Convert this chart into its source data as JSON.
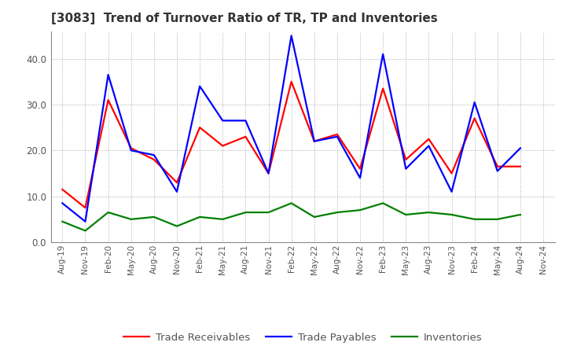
{
  "title": "[3083]  Trend of Turnover Ratio of TR, TP and Inventories",
  "x_labels": [
    "Aug-19",
    "Nov-19",
    "Feb-20",
    "May-20",
    "Aug-20",
    "Nov-20",
    "Feb-21",
    "May-21",
    "Aug-21",
    "Nov-21",
    "Feb-22",
    "May-22",
    "Aug-22",
    "Nov-22",
    "Feb-23",
    "May-23",
    "Aug-23",
    "Nov-23",
    "Feb-24",
    "May-24",
    "Aug-24",
    "Nov-24"
  ],
  "trade_receivables": [
    11.5,
    7.5,
    31.0,
    20.5,
    18.0,
    13.0,
    25.0,
    21.0,
    23.0,
    15.0,
    35.0,
    22.0,
    23.5,
    16.0,
    33.5,
    18.0,
    22.5,
    15.0,
    27.0,
    16.5,
    16.5,
    null
  ],
  "trade_payables": [
    8.5,
    4.5,
    36.5,
    20.0,
    19.0,
    11.0,
    34.0,
    26.5,
    26.5,
    15.0,
    45.0,
    22.0,
    23.0,
    14.0,
    41.0,
    16.0,
    21.0,
    11.0,
    30.5,
    15.5,
    20.5,
    null
  ],
  "inventories": [
    4.5,
    2.5,
    6.5,
    5.0,
    5.5,
    3.5,
    5.5,
    5.0,
    6.5,
    6.5,
    8.5,
    5.5,
    6.5,
    7.0,
    8.5,
    6.0,
    6.5,
    6.0,
    5.0,
    5.0,
    6.0,
    null
  ],
  "ylim": [
    0,
    46
  ],
  "yticks": [
    0.0,
    10.0,
    20.0,
    30.0,
    40.0
  ],
  "color_tr": "#ff0000",
  "color_tp": "#0000ff",
  "color_inv": "#008000",
  "bg_color": "#ffffff",
  "grid_color": "#aaaaaa",
  "linewidth": 1.6,
  "title_color": "#333333",
  "tick_color": "#555555"
}
